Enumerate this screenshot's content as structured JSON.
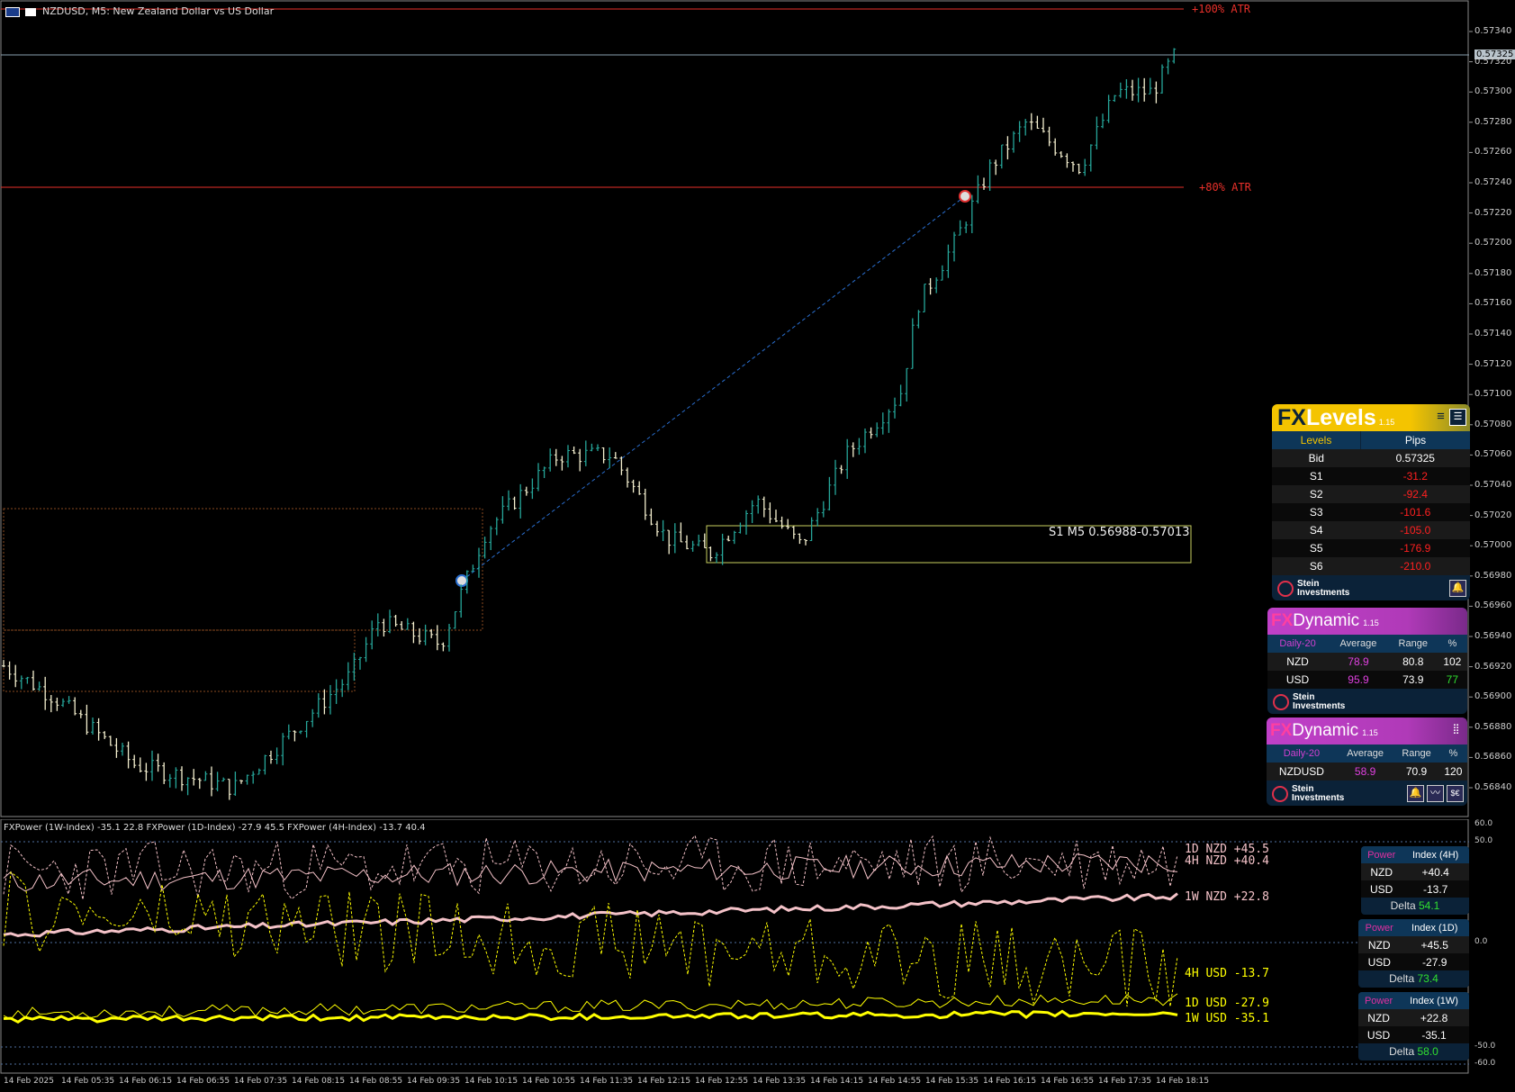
{
  "window": {
    "title": "NZDUSD, M5:  New Zealand Dollar vs US Dollar",
    "symbol_flag_icon": "nz-us-flag-icon"
  },
  "price_axis": {
    "labels": [
      "0.57340",
      "0.57320",
      "0.57300",
      "0.57280",
      "0.57260",
      "0.57240",
      "0.57220",
      "0.57200",
      "0.57180",
      "0.57160",
      "0.57140",
      "0.57120",
      "0.57100",
      "0.57080",
      "0.57060",
      "0.57040",
      "0.57020",
      "0.57000",
      "0.56980",
      "0.56960",
      "0.56940",
      "0.56920",
      "0.56900",
      "0.56880",
      "0.56860",
      "0.56840"
    ],
    "current_price": "0.57325"
  },
  "time_axis": {
    "labels": [
      "14 Feb 2025",
      "14 Feb 05:35",
      "14 Feb 06:15",
      "14 Feb 06:55",
      "14 Feb 07:35",
      "14 Feb 08:15",
      "14 Feb 08:55",
      "14 Feb 09:35",
      "14 Feb 10:15",
      "14 Feb 10:55",
      "14 Feb 11:35",
      "14 Feb 12:15",
      "14 Feb 12:55",
      "14 Feb 13:35",
      "14 Feb 14:15",
      "14 Feb 14:55",
      "14 Feb 15:35",
      "14 Feb 16:15",
      "14 Feb 16:55",
      "14 Feb 17:35",
      "14 Feb 18:15"
    ]
  },
  "annotations": {
    "atr_100": "+100% ATR",
    "atr_80": "+80% ATR",
    "zone_s1": "S1 M5 0.56988-0.57013"
  },
  "subwindow": {
    "title": "FXPower (1W-Index) -35.1 22.8 FXPower (1D-Index) -27.9 45.5 FXPower (4H-Index) -13.7 40.4",
    "axis_labels": [
      "50.0",
      "0.0",
      "-50.0",
      "-60.0"
    ],
    "top_label": "60.0",
    "line_labels": {
      "nzd_1d": "1D NZD +45.5",
      "nzd_4h": "4H NZD +40.4",
      "nzd_1w": "1W NZD +22.8",
      "usd_4h": "4H USD -13.7",
      "usd_1d": "1D USD -27.9",
      "usd_1w": "1W USD -35.1"
    }
  },
  "fxlevels": {
    "brand_fx": "FX",
    "brand_name": "Levels",
    "version": "1.15",
    "col_levels": "Levels",
    "col_pips": "Pips",
    "rows": [
      {
        "level": "Bid",
        "value": "0.57325"
      },
      {
        "level": "S1",
        "value": "-31.2"
      },
      {
        "level": "S2",
        "value": "-92.4"
      },
      {
        "level": "S3",
        "value": "-101.6"
      },
      {
        "level": "S4",
        "value": "-105.0"
      },
      {
        "level": "S5",
        "value": "-176.9"
      },
      {
        "level": "S6",
        "value": "-210.0"
      }
    ],
    "footer_line1": "Stein",
    "footer_line2": "Investments"
  },
  "fxdynamic1": {
    "brand_fx": "FX",
    "brand_name": "Dynamic",
    "version": "1.15",
    "headers": [
      "Daily-20",
      "Average",
      "Range",
      "%"
    ],
    "rows": [
      {
        "name": "NZD",
        "average": "78.9",
        "range": "80.8",
        "pct": "102"
      },
      {
        "name": "USD",
        "average": "95.9",
        "range": "73.9",
        "pct": "77"
      }
    ],
    "footer_line1": "Stein",
    "footer_line2": "Investments"
  },
  "fxdynamic2": {
    "brand_fx": "FX",
    "brand_name": "Dynamic",
    "version": "1.15",
    "headers": [
      "Daily-20",
      "Average",
      "Range",
      "%"
    ],
    "rows": [
      {
        "name": "NZDUSD",
        "average": "58.9",
        "range": "70.9",
        "pct": "120"
      }
    ],
    "footer_line1": "Stein",
    "footer_line2": "Investments"
  },
  "power_panels": [
    {
      "h_power": "Power",
      "h_index": "Index (4H)",
      "nzd": "+40.4",
      "usd": "-13.7",
      "delta_label": "Delta",
      "delta": "54.1"
    },
    {
      "h_power": "Power",
      "h_index": "Index (1D)",
      "nzd": "+45.5",
      "usd": "-27.9",
      "delta_label": "Delta",
      "delta": "73.4"
    },
    {
      "h_power": "Power",
      "h_index": "Index (1W)",
      "nzd": "+22.8",
      "usd": "-35.1",
      "delta_label": "Delta",
      "delta": "58.0"
    }
  ],
  "currency_labels": {
    "nzd": "NZD",
    "usd": "USD"
  },
  "colors": {
    "bull": "#26a69a",
    "bear": "#f5f0d0",
    "atr_line": "#e8302a",
    "nzd_line": "#f4c2c8",
    "usd_line": "#ffff00",
    "zone_border": "#c8d060"
  }
}
